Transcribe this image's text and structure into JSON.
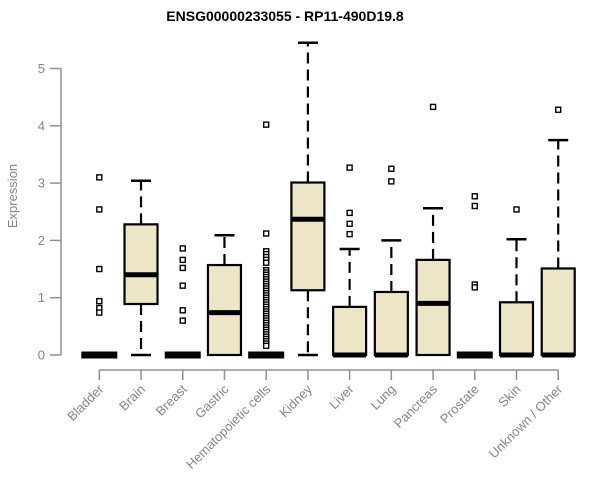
{
  "chart_data": {
    "type": "boxplot",
    "title": "ENSG00000233055 - RP11-490D19.8",
    "xlabel": "",
    "ylabel": "Expression",
    "ylim": [
      0,
      5.5
    ],
    "yticks": [
      0,
      1,
      2,
      3,
      4,
      5
    ],
    "grid": false,
    "legend": "none",
    "categories": [
      "Bladder",
      "Brain",
      "Breast",
      "Gastric",
      "Hematopoietic cells",
      "Kidney",
      "Liver",
      "Lung",
      "Pancreas",
      "Prostate",
      "Skin",
      "Unknown / Other"
    ],
    "colors": {
      "box_fill": "#ece5c6",
      "box_line": "#000000",
      "axis": "#8f8f8f",
      "text": "#858585",
      "title": "#000000",
      "background": "#ffffff"
    },
    "boxes": [
      {
        "label": "Bladder",
        "collapsed": true,
        "q1": 0,
        "median": 0,
        "q3": 0,
        "whisker_low": 0,
        "whisker_high": 0,
        "outliers": [
          3.1,
          2.54,
          1.5,
          0.94,
          0.82,
          0.74
        ]
      },
      {
        "label": "Brain",
        "collapsed": false,
        "q1": 0.89,
        "median": 1.4,
        "q3": 2.28,
        "whisker_low": 0,
        "whisker_high": 3.04,
        "outliers": []
      },
      {
        "label": "Breast",
        "collapsed": true,
        "q1": 0,
        "median": 0,
        "q3": 0,
        "whisker_low": 0,
        "whisker_high": 0,
        "outliers": [
          1.86,
          1.66,
          1.52,
          1.21,
          0.78,
          0.6
        ]
      },
      {
        "label": "Gastric",
        "collapsed": false,
        "q1": 0,
        "median": 0.74,
        "q3": 1.57,
        "whisker_low": 0,
        "whisker_high": 2.09,
        "outliers": []
      },
      {
        "label": "Hematopoietic cells",
        "collapsed": true,
        "q1": 0,
        "median": 0,
        "q3": 0,
        "whisker_low": 0,
        "whisker_high": 0,
        "outliers": [
          4.02,
          2.12,
          1.81,
          1.76,
          1.71,
          1.66,
          1.61,
          1.48,
          1.44,
          1.4,
          1.36,
          1.32,
          1.28,
          1.24,
          1.2,
          1.16,
          1.12,
          1.08,
          1.04,
          1.0,
          0.96,
          0.92,
          0.88,
          0.84,
          0.8,
          0.76,
          0.72,
          0.68,
          0.64,
          0.6,
          0.56,
          0.52,
          0.48,
          0.44,
          0.4,
          0.36,
          0.32,
          0.28,
          0.24,
          0.2,
          0.16
        ]
      },
      {
        "label": "Kidney",
        "collapsed": false,
        "q1": 1.13,
        "median": 2.37,
        "q3": 3.01,
        "whisker_low": 0,
        "whisker_high": 5.45,
        "outliers": []
      },
      {
        "label": "Liver",
        "collapsed": false,
        "q1": 0,
        "median": 0,
        "q3": 0.84,
        "whisker_low": 0,
        "whisker_high": 1.85,
        "outliers": [
          3.27,
          2.48,
          2.29,
          2.11
        ]
      },
      {
        "label": "Lung",
        "collapsed": false,
        "q1": 0,
        "median": 0,
        "q3": 1.1,
        "whisker_low": 0,
        "whisker_high": 2.0,
        "outliers": [
          3.25,
          3.03
        ]
      },
      {
        "label": "Pancreas",
        "collapsed": false,
        "q1": 0,
        "median": 0.9,
        "q3": 1.66,
        "whisker_low": 0,
        "whisker_high": 2.56,
        "outliers": [
          4.33
        ]
      },
      {
        "label": "Prostate",
        "collapsed": true,
        "q1": 0,
        "median": 0,
        "q3": 0,
        "whisker_low": 0,
        "whisker_high": 0,
        "outliers": [
          2.77,
          2.6,
          1.23,
          1.18
        ]
      },
      {
        "label": "Skin",
        "collapsed": false,
        "q1": 0,
        "median": 0,
        "q3": 0.92,
        "whisker_low": 0,
        "whisker_high": 2.02,
        "outliers": [
          2.54
        ]
      },
      {
        "label": "Unknown / Other",
        "collapsed": false,
        "q1": 0,
        "median": 0,
        "q3": 1.51,
        "whisker_low": 0,
        "whisker_high": 3.75,
        "outliers": [
          4.28
        ]
      }
    ]
  }
}
